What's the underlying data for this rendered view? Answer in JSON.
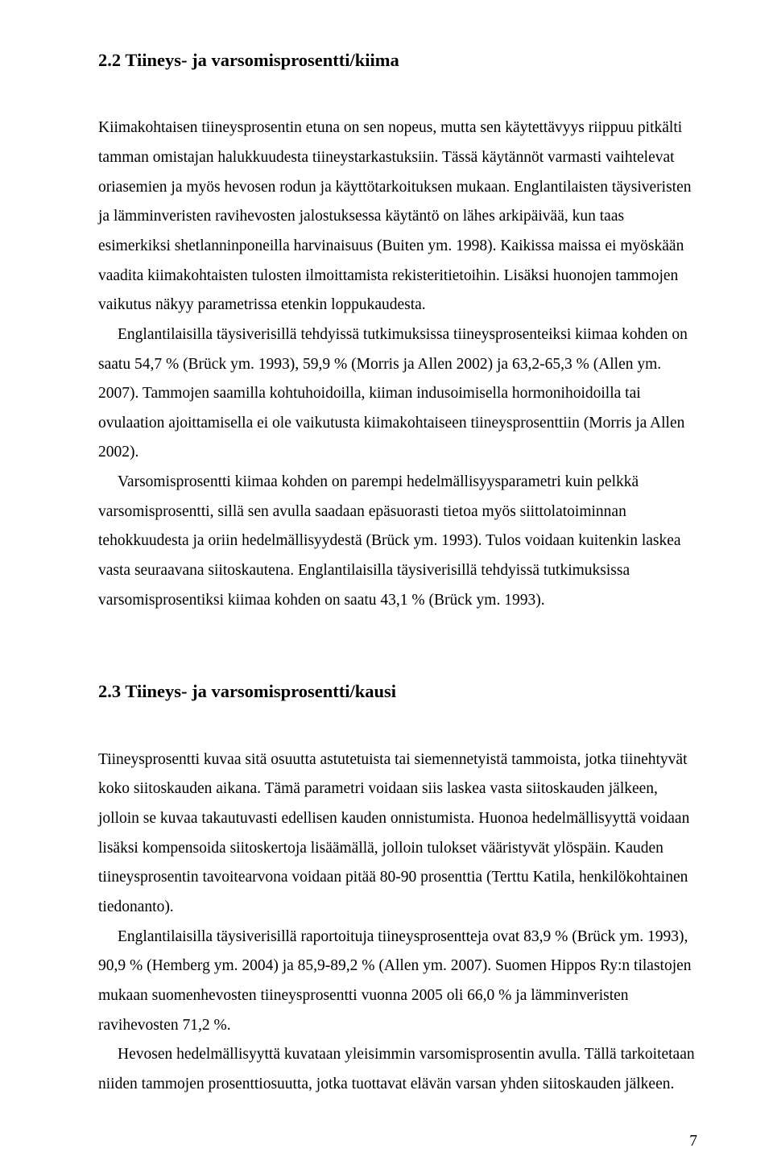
{
  "section1": {
    "heading": "2.2  Tiineys- ja varsomisprosentti/kiima",
    "p1": "Kiimakohtaisen tiineysprosentin etuna on sen nopeus, mutta sen käytettävyys riippuu pitkälti tamman omistajan halukkuudesta tiineystarkastuksiin. Tässä käytännöt varmasti vaihtelevat oriasemien ja myös hevosen rodun ja käyttötarkoituksen mukaan. Englantilaisten täysiveristen ja lämminveristen ravihevosten jalostuksessa käytäntö on lähes arkipäivää, kun taas esimerkiksi shetlanninponeilla harvinaisuus (Buiten ym. 1998). Kaikissa maissa ei myöskään vaadita kiimakohtaisten tulosten ilmoittamista rekisteritietoihin. Lisäksi huonojen tammojen vaikutus näkyy parametrissa etenkin loppukaudesta.",
    "p2": "Englantilaisilla täysiverisillä tehdyissä tutkimuksissa tiineysprosenteiksi kiimaa kohden on saatu 54,7 % (Brück ym. 1993), 59,9 % (Morris ja Allen 2002) ja 63,2-65,3 % (Allen ym. 2007). Tammojen saamilla kohtuhoidoilla, kiiman indusoimisella hormonihoidoilla tai ovulaation ajoittamisella ei ole vaikutusta kiimakohtaiseen tiineysprosenttiin (Morris ja Allen 2002).",
    "p3": "Varsomisprosentti kiimaa kohden on parempi hedelmällisyysparametri kuin pelkkä varsomisprosentti, sillä sen avulla saadaan epäsuorasti tietoa myös siittolatoiminnan tehokkuudesta ja oriin hedelmällisyydestä (Brück ym. 1993). Tulos voidaan kuitenkin laskea vasta seuraavana siitoskautena. Englantilaisilla täysiverisillä tehdyissä tutkimuksissa varsomisprosentiksi kiimaa kohden on saatu 43,1 % (Brück ym. 1993)."
  },
  "section2": {
    "heading": "2.3  Tiineys- ja varsomisprosentti/kausi",
    "p1": "Tiineysprosentti kuvaa sitä osuutta astutetuista tai siemennetyistä tammoista, jotka tiinehtyvät koko siitoskauden aikana. Tämä parametri voidaan siis laskea vasta siitoskauden jälkeen, jolloin se kuvaa takautuvasti edellisen kauden onnistumista. Huonoa hedelmällisyyttä voidaan lisäksi kompensoida siitoskertoja lisäämällä, jolloin tulokset vääristyvät ylöspäin. Kauden tiineysprosentin tavoitearvona voidaan pitää 80-90 prosenttia (Terttu Katila, henkilökohtainen tiedonanto).",
    "p2": "Englantilaisilla täysiverisillä raportoituja tiineysprosentteja ovat 83,9 % (Brück ym. 1993), 90,9 % (Hemberg ym. 2004) ja 85,9-89,2 % (Allen ym. 2007). Suomen Hippos Ry:n tilastojen mukaan suomenhevosten tiineysprosentti vuonna 2005 oli 66,0 % ja lämminveristen ravihevosten 71,2 %.",
    "p3": "Hevosen hedelmällisyyttä kuvataan yleisimmin varsomisprosentin avulla. Tällä tarkoitetaan niiden tammojen prosenttiosuutta, jotka tuottavat elävän varsan yhden siitoskauden jälkeen."
  },
  "pageNumber": "7"
}
